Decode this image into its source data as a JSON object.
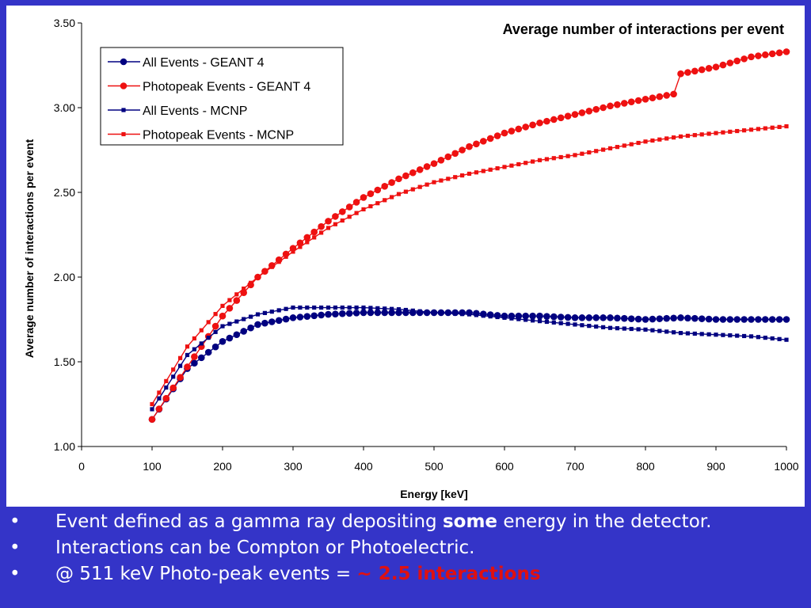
{
  "chart_data": {
    "type": "line",
    "title": "Average number of interactions per event",
    "xlabel": "Energy [keV]",
    "ylabel": "Average number of interactions per event",
    "xlim": [
      0,
      1000
    ],
    "ylim": [
      1.0,
      3.5
    ],
    "x_ticks": [
      "0",
      "100",
      "200",
      "300",
      "400",
      "500",
      "600",
      "700",
      "800",
      "900",
      "1000"
    ],
    "y_ticks": [
      "1.00",
      "1.50",
      "2.00",
      "2.50",
      "3.00",
      "3.50"
    ],
    "grid": false,
    "legend_position": "top-left",
    "series": [
      {
        "name": "All Events - GEANT 4",
        "color": "#000080",
        "marker": "circle",
        "x": [
          100,
          150,
          200,
          250,
          300,
          350,
          400,
          450,
          500,
          550,
          600,
          650,
          700,
          750,
          800,
          850,
          900,
          950,
          1000
        ],
        "values": [
          1.16,
          1.46,
          1.62,
          1.72,
          1.76,
          1.78,
          1.79,
          1.79,
          1.79,
          1.79,
          1.77,
          1.77,
          1.76,
          1.76,
          1.75,
          1.76,
          1.75,
          1.75,
          1.75
        ]
      },
      {
        "name": "Photopeak Events - GEANT 4",
        "color": "#ee1111",
        "marker": "circle",
        "x": [
          100,
          150,
          200,
          250,
          300,
          350,
          400,
          450,
          500,
          550,
          600,
          650,
          700,
          750,
          800,
          840,
          850,
          900,
          950,
          1000
        ],
        "values": [
          1.16,
          1.47,
          1.77,
          2.0,
          2.17,
          2.33,
          2.47,
          2.58,
          2.67,
          2.77,
          2.85,
          2.91,
          2.96,
          3.01,
          3.05,
          3.08,
          3.2,
          3.24,
          3.3,
          3.33
        ]
      },
      {
        "name": "All Events - MCNP",
        "color": "#000080",
        "marker": "square",
        "x": [
          100,
          150,
          200,
          250,
          300,
          350,
          400,
          450,
          500,
          550,
          600,
          650,
          700,
          750,
          800,
          850,
          900,
          950,
          1000
        ],
        "values": [
          1.22,
          1.54,
          1.71,
          1.78,
          1.82,
          1.82,
          1.82,
          1.81,
          1.79,
          1.78,
          1.76,
          1.74,
          1.72,
          1.7,
          1.69,
          1.67,
          1.66,
          1.65,
          1.63
        ]
      },
      {
        "name": "Photopeak Events - MCNP",
        "color": "#ee1111",
        "marker": "square",
        "x": [
          100,
          150,
          200,
          250,
          300,
          350,
          400,
          450,
          500,
          550,
          600,
          650,
          700,
          750,
          800,
          850,
          900,
          950,
          1000
        ],
        "values": [
          1.25,
          1.59,
          1.83,
          2.0,
          2.15,
          2.29,
          2.4,
          2.49,
          2.56,
          2.61,
          2.65,
          2.69,
          2.72,
          2.76,
          2.8,
          2.83,
          2.85,
          2.87,
          2.89
        ]
      }
    ]
  },
  "bullets": [
    {
      "dot": "•",
      "parts": [
        {
          "text": "Event defined as a gamma ray depositing ",
          "style": "normal"
        },
        {
          "text": "some",
          "style": "bold"
        },
        {
          "text": " energy in the detector.",
          "style": "normal"
        }
      ]
    },
    {
      "dot": "•",
      "parts": [
        {
          "text": "Interactions can be Compton or Photoelectric.",
          "style": "normal"
        }
      ]
    },
    {
      "dot": "•",
      "parts": [
        {
          "text": "@ 511 keV Photo-peak events = ",
          "style": "normal"
        },
        {
          "text": "~ 2.5 interactions",
          "style": "red"
        }
      ]
    }
  ]
}
